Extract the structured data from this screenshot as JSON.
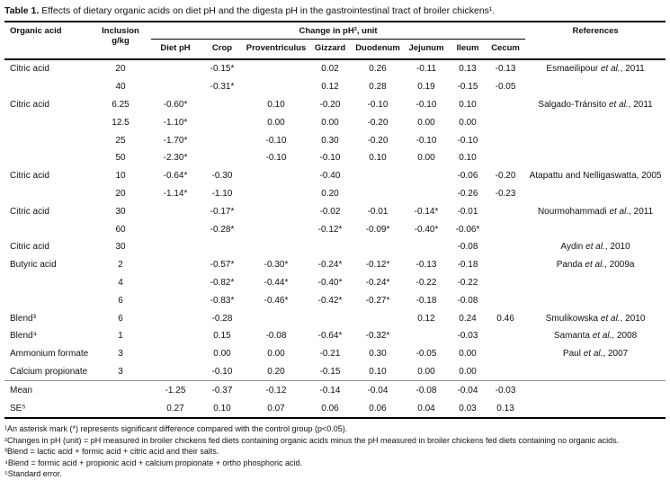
{
  "caption": {
    "label": "Table 1.",
    "text": " Effects of dietary organic acids on diet pH and the digesta pH in the gastrointestinal tract of broiler chickens¹."
  },
  "table": {
    "headers": {
      "organic_acid": "Organic acid",
      "inclusion_line1": "Inclusion",
      "inclusion_line2": "g/kg",
      "group": "Change in pH², unit",
      "references": "References"
    },
    "subcolumns": [
      "Diet pH",
      "Crop",
      "Proventriculus",
      "Gizzard",
      "Duodenum",
      "Jejunum",
      "Ileum",
      "Cecum"
    ],
    "separator_before_row_index": 18,
    "rows": [
      [
        "Citric acid",
        "20",
        "",
        "-0.15*",
        "",
        "0.02",
        "0.26",
        "-0.11",
        "0.13",
        "-0.13",
        "Esmaeilipour et al., 2011"
      ],
      [
        "",
        "40",
        "",
        "-0.31*",
        "",
        "0.12",
        "0.28",
        "0.19",
        "-0.15",
        "-0.05",
        ""
      ],
      [
        "Citric acid",
        "6.25",
        "-0.60*",
        "",
        "0.10",
        "-0.20",
        "-0.10",
        "-0.10",
        "0.10",
        "",
        "Salgado-Tránsito et al., 2011"
      ],
      [
        "",
        "12.5",
        "-1.10*",
        "",
        "0.00",
        "0.00",
        "-0.20",
        "0.00",
        "0.00",
        "",
        ""
      ],
      [
        "",
        "25",
        "-1.70*",
        "",
        "-0.10",
        "0.30",
        "-0.20",
        "-0.10",
        "-0.10",
        "",
        ""
      ],
      [
        "",
        "50",
        "-2.30*",
        "",
        "-0.10",
        "-0.10",
        "0.10",
        "0.00",
        "0.10",
        "",
        ""
      ],
      [
        "Citric acid",
        "10",
        "-0.64*",
        "-0.30",
        "",
        "-0.40",
        "",
        "",
        "-0.06",
        "-0.20",
        "Atapattu and Nelligaswatta, 2005"
      ],
      [
        "",
        "20",
        "-1.14*",
        "-1.10",
        "",
        "0.20",
        "",
        "",
        "-0.26",
        "-0.23",
        ""
      ],
      [
        "Citric acid",
        "30",
        "",
        "-0.17*",
        "",
        "-0.02",
        "-0.01",
        "-0.14*",
        "-0.01",
        "",
        "Nourmohammadi et al., 2011"
      ],
      [
        "",
        "60",
        "",
        "-0.28*",
        "",
        "-0.12*",
        "-0.09*",
        "-0.40*",
        "-0.06*",
        "",
        ""
      ],
      [
        "Citric acid",
        "30",
        "",
        "",
        "",
        "",
        "",
        "",
        "-0.08",
        "",
        "Aydin et al., 2010"
      ],
      [
        "Butyric acid",
        "2",
        "",
        "-0.57*",
        "-0.30*",
        "-0.24*",
        "-0.12*",
        "-0.13",
        "-0.18",
        "",
        "Panda et al., 2009a"
      ],
      [
        "",
        "4",
        "",
        "-0.82*",
        "-0.44*",
        "-0.40*",
        "-0.24*",
        "-0.22",
        "-0.22",
        "",
        ""
      ],
      [
        "",
        "6",
        "",
        "-0.83*",
        "-0.46*",
        "-0.42*",
        "-0.27*",
        "-0.18",
        "-0.08",
        "",
        ""
      ],
      [
        "Blend³",
        "6",
        "",
        "-0.28",
        "",
        "",
        "",
        "0.12",
        "0.24",
        "0.46",
        "Smulikowska et al., 2010"
      ],
      [
        "Blend⁴",
        "1",
        "",
        "0.15",
        "-0.08",
        "-0.64*",
        "-0.32*",
        "",
        "-0.03",
        "",
        "Samanta et al., 2008"
      ],
      [
        "Ammonium formate",
        "3",
        "",
        "0.00",
        "0.00",
        "-0.21",
        "0.30",
        "-0.05",
        "0.00",
        "",
        "Paul et al., 2007"
      ],
      [
        "Calcium propionate",
        "3",
        "",
        "-0.10",
        "0.20",
        "-0.15",
        "0.10",
        "0.00",
        "0.00",
        "",
        ""
      ],
      [
        "Mean",
        "",
        "-1.25",
        "-0.37",
        "-0.12",
        "-0.14",
        "-0.04",
        "-0.08",
        "-0.04",
        "-0.03",
        ""
      ],
      [
        "SE⁵",
        "",
        "0.27",
        "0.10",
        "0.07",
        "0.06",
        "0.06",
        "0.04",
        "0.03",
        "0.13",
        ""
      ]
    ]
  },
  "footnotes": [
    "¹An asterisk mark (*) represents significant difference compared with the control group (p<0.05).",
    "²Changes in pH (unit) = pH measured in broiler chickens fed diets containing organic acids minus the pH measured in broiler chickens fed diets containing no organic acids.",
    "³Blend = lactic acid + formic acid + citric acid and their salts.",
    "⁴Blend = formic acid + propionic acid + calcium propionate + ortho phosphoric acid.",
    "⁵Standard error."
  ]
}
